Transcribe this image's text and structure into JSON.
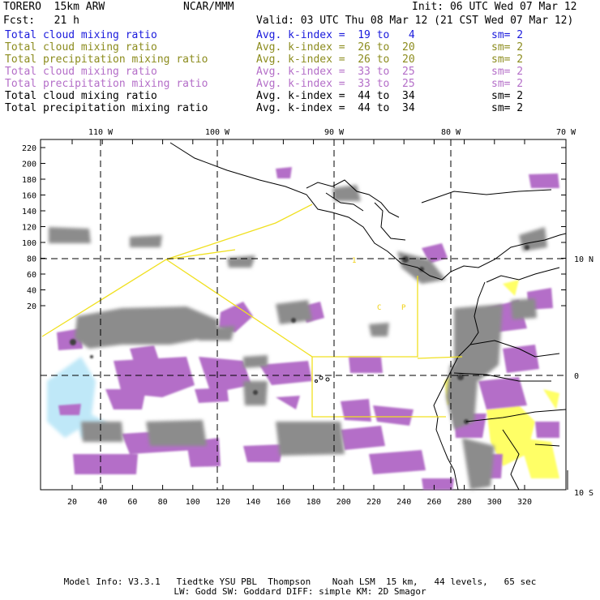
{
  "header": {
    "model": "TORERO  15km ARW",
    "center": "NCAR/MMM",
    "init": "Init: 06 UTC Wed 07 Mar 12",
    "fcst": "Fcst:   21 h",
    "valid": "Valid: 03 UTC Thu 08 Mar 12 (21 CST Wed 07 Mar 12)"
  },
  "legend": [
    {
      "field": "Total cloud mixing ratio",
      "index": "Avg. k-index =  19 to   4",
      "sm": "sm= 2",
      "color": "#1a1adc"
    },
    {
      "field": "Total cloud mixing ratio",
      "index": "Avg. k-index =  26 to  20",
      "sm": "sm= 2",
      "color": "#8c8c1e"
    },
    {
      "field": "Total precipitation mixing ratio",
      "index": "Avg. k-index =  26 to  20",
      "sm": "sm= 2",
      "color": "#8c8c1e"
    },
    {
      "field": "Total cloud mixing ratio",
      "index": "Avg. k-index =  33 to  25",
      "sm": "sm= 2",
      "color": "#b46ec8"
    },
    {
      "field": "Total precipitation mixing ratio",
      "index": "Avg. k-index =  33 to  25",
      "sm": "sm= 2",
      "color": "#b46ec8"
    },
    {
      "field": "Total cloud mixing ratio",
      "index": "Avg. k-index =  44 to  34",
      "sm": "sm= 2",
      "color": "#000000"
    },
    {
      "field": "Total precipitation mixing ratio",
      "index": "Avg. k-index =  44 to  34",
      "sm": "sm= 2",
      "color": "#000000"
    }
  ],
  "map": {
    "lon_labels": [
      "110 W",
      "100 W",
      "90 W",
      "80 W",
      "70 W"
    ],
    "lat_labels": [
      "10 N",
      "0",
      "10 S"
    ],
    "y_ticks": [
      "220",
      "200",
      "180",
      "160",
      "140",
      "120",
      "100",
      "80",
      "60",
      "40",
      "20"
    ],
    "x_ticks": [
      "20",
      "40",
      "60",
      "80",
      "100",
      "120",
      "140",
      "160",
      "180",
      "200",
      "220",
      "240",
      "260",
      "280",
      "300",
      "320"
    ],
    "colors": {
      "cloud_gray": "#8c8c8c",
      "precip_purple": "#b46ec8",
      "light_blue": "#bfe8f8",
      "yellow_shade": "#ffff66",
      "boundary_yellow": "#f0e020"
    }
  },
  "footer": {
    "line1": "Model Info: V3.3.1   Tiedtke YSU PBL  Thompson    Noah LSM  15 km,   44 levels,   65 sec",
    "line2": "LW: Godd SW: Goddard DIFF: simple KM: 2D Smagor"
  }
}
